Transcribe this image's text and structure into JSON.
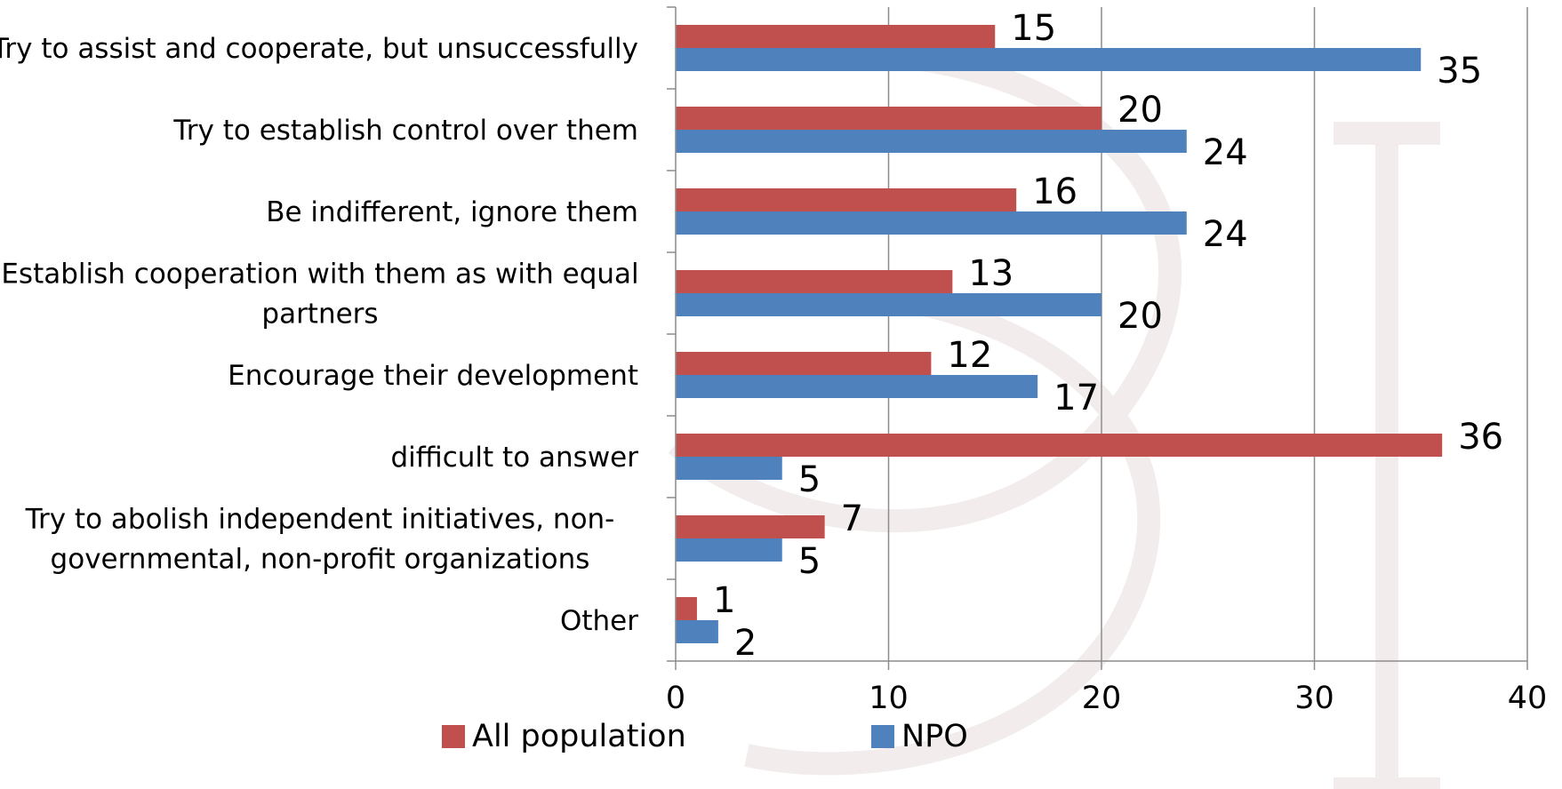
{
  "chart_data": {
    "type": "bar",
    "orientation": "horizontal",
    "categories": [
      [
        "Try to assist and cooperate, but unsuccessfully"
      ],
      [
        "Try to establish control over them"
      ],
      [
        "Be indifferent, ignore them"
      ],
      [
        "Establish cooperation with them as with equal",
        "partners"
      ],
      [
        "Encourage their development"
      ],
      [
        "difficult to answer"
      ],
      [
        "Try to abolish independent initiatives, non-",
        "governmental, non-profit organizations"
      ],
      [
        "Other"
      ]
    ],
    "series": [
      {
        "name": "All population",
        "color": "#c0504d",
        "values": [
          15,
          20,
          16,
          13,
          12,
          36,
          7,
          1
        ]
      },
      {
        "name": "NPO",
        "color": "#4f81bd",
        "values": [
          35,
          24,
          24,
          20,
          17,
          5,
          5,
          2
        ]
      }
    ],
    "xlim": [
      0,
      40
    ],
    "xticks": [
      0,
      10,
      20,
      30,
      40
    ],
    "grid": true,
    "data_labels": true,
    "legend_position": "bottom"
  }
}
